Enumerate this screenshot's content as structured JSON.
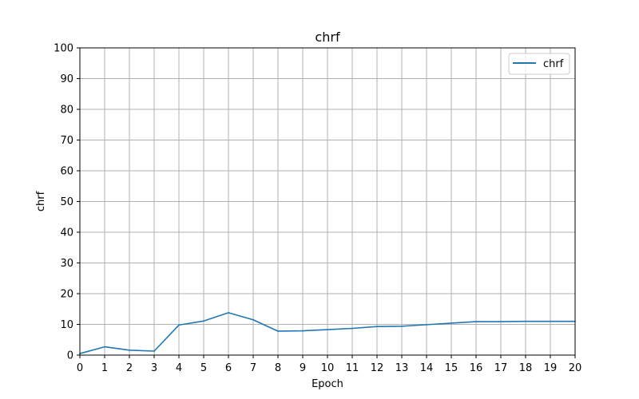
{
  "chart_data": {
    "type": "line",
    "title": "chrf",
    "xlabel": "Epoch",
    "ylabel": "chrf",
    "xlim": [
      0,
      20
    ],
    "ylim": [
      0,
      100
    ],
    "xticks": [
      0,
      1,
      2,
      3,
      4,
      5,
      6,
      7,
      8,
      9,
      10,
      11,
      12,
      13,
      14,
      15,
      16,
      17,
      18,
      19,
      20
    ],
    "yticks": [
      0,
      10,
      20,
      30,
      40,
      50,
      60,
      70,
      80,
      90,
      100
    ],
    "grid": true,
    "legend_position": "top-right",
    "x": [
      0,
      1,
      2,
      3,
      4,
      5,
      6,
      7,
      8,
      9,
      10,
      11,
      12,
      13,
      14,
      15,
      16,
      17,
      18,
      19,
      20
    ],
    "series": [
      {
        "name": "chrf",
        "color": "#1f77b4",
        "values": [
          0.5,
          2.7,
          1.6,
          1.3,
          9.8,
          11.1,
          13.8,
          11.5,
          7.8,
          7.9,
          8.3,
          8.7,
          9.3,
          9.4,
          9.9,
          10.4,
          10.9,
          10.9,
          11.0,
          11.0,
          11.0
        ]
      }
    ]
  }
}
